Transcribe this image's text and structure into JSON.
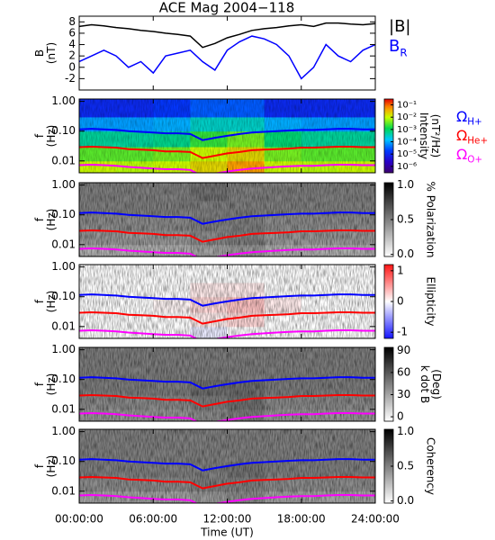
{
  "chart_data": [
    {
      "type": "line",
      "title": "ACE Mag 2004−118",
      "ylabel": [
        "B",
        "(nT)"
      ],
      "x": [
        0,
        1,
        2,
        3,
        4,
        5,
        6,
        7,
        8,
        9,
        10,
        11,
        12,
        13,
        14,
        15,
        16,
        17,
        18,
        19,
        20,
        21,
        22,
        23,
        24
      ],
      "ylim": [
        -4,
        9
      ],
      "yticks": [
        -2,
        0,
        2,
        4,
        6,
        8
      ],
      "series": [
        {
          "name": "|B|",
          "color": "#000000",
          "subscript": false,
          "values": [
            7.2,
            7.5,
            7.3,
            7.0,
            6.8,
            6.5,
            6.3,
            6.0,
            5.8,
            5.5,
            3.5,
            4.2,
            5.2,
            5.8,
            6.5,
            6.8,
            7.0,
            7.3,
            7.5,
            7.2,
            7.8,
            7.8,
            7.6,
            7.5,
            7.7
          ]
        },
        {
          "name": "BR",
          "color": "#0000ff",
          "subscript": true,
          "values": [
            1,
            2,
            3,
            2,
            0,
            1,
            -1,
            2,
            2.5,
            3,
            1,
            -0.5,
            3,
            4.5,
            5.5,
            5,
            4,
            2,
            -2,
            0,
            4,
            2,
            1,
            3,
            4
          ]
        }
      ]
    },
    {
      "type": "heatmap",
      "ylabel": [
        "f",
        "(Hz)"
      ],
      "ylog": true,
      "ylim": [
        0.004,
        1.2
      ],
      "yticks": [
        0.01,
        {
          "value": 0.1,
          "label": "0.10"
        },
        {
          "value": 1,
          "label": "1.00"
        }
      ],
      "time_bins": [
        0,
        3,
        6,
        9,
        12,
        15,
        18,
        21,
        24
      ],
      "freq_bins": [
        0.004,
        0.01,
        0.03,
        0.1,
        0.3,
        1.2
      ],
      "z": [
        [
          0.01,
          0.008,
          0.01,
          0.02,
          0.05,
          0.01,
          0.008,
          0.01
        ],
        [
          0.003,
          0.003,
          0.004,
          0.01,
          0.02,
          0.004,
          0.003,
          0.003
        ],
        [
          0.0005,
          0.0005,
          0.0006,
          0.002,
          0.004,
          0.0008,
          0.0005,
          0.0005
        ],
        [
          8e-05,
          8e-05,
          0.0001,
          0.0003,
          0.0003,
          0.0001,
          8e-05,
          8e-05
        ],
        [
          1e-05,
          1e-05,
          1.5e-05,
          3e-05,
          3e-05,
          1e-05,
          1e-05,
          1e-05
        ]
      ],
      "colormap": "rainbow",
      "zlog": true,
      "zlim": [
        3e-07,
        0.3
      ],
      "colorbar_label": [
        "Intensity",
        "(nT²/Hz)"
      ],
      "colorbar_ticks": [
        {
          "value": 0.1,
          "label": "10⁻¹"
        },
        {
          "value": 0.01,
          "label": "10⁻²"
        },
        {
          "value": 0.001,
          "label": "10⁻³"
        },
        {
          "value": 0.0001,
          "label": "10⁻⁴"
        },
        {
          "value": 1e-05,
          "label": "10⁻⁵"
        },
        {
          "value": 1e-06,
          "label": "10⁻⁶"
        }
      ],
      "series": [
        {
          "name": "ΩH+",
          "color": "#0000ff",
          "subscript": true,
          "values": [
            0.115,
            0.12,
            0.115,
            0.11,
            0.1,
            0.095,
            0.09,
            0.085,
            0.085,
            0.08,
            0.05,
            0.06,
            0.07,
            0.08,
            0.09,
            0.095,
            0.1,
            0.105,
            0.11,
            0.11,
            0.115,
            0.12,
            0.12,
            0.115,
            0.115
          ]
        },
        {
          "name": "ΩHe+",
          "color": "#ff0000",
          "subscript": true,
          "values": [
            0.029,
            0.03,
            0.029,
            0.028,
            0.025,
            0.024,
            0.023,
            0.021,
            0.021,
            0.02,
            0.0125,
            0.015,
            0.018,
            0.02,
            0.023,
            0.024,
            0.025,
            0.026,
            0.028,
            0.028,
            0.029,
            0.03,
            0.03,
            0.029,
            0.029
          ]
        },
        {
          "name": "ΩO+",
          "color": "#ff00ff",
          "subscript": true,
          "values": [
            0.0072,
            0.0075,
            0.0072,
            0.0069,
            0.0063,
            0.0059,
            0.0056,
            0.0053,
            0.0053,
            0.005,
            0.0031,
            0.0038,
            0.0044,
            0.005,
            0.0056,
            0.0059,
            0.0063,
            0.0066,
            0.0069,
            0.0069,
            0.0072,
            0.0075,
            0.0075,
            0.0072,
            0.0072
          ]
        }
      ]
    },
    {
      "type": "heatmap",
      "ylabel": [
        "f",
        "(Hz)"
      ],
      "ylog": true,
      "ylim": [
        0.004,
        1.2
      ],
      "yticks": [
        0.01,
        {
          "value": 0.1,
          "label": "0.10"
        },
        {
          "value": 1,
          "label": "1.00"
        }
      ],
      "time_bins": [
        0,
        3,
        6,
        9,
        12,
        15,
        18,
        21,
        24
      ],
      "freq_bins": [
        0.004,
        0.01,
        0.03,
        0.1,
        0.3,
        1.2
      ],
      "z": [
        [
          0.3,
          0.3,
          0.3,
          0.35,
          0.4,
          0.3,
          0.3,
          0.3
        ],
        [
          0.4,
          0.4,
          0.4,
          0.45,
          0.5,
          0.4,
          0.4,
          0.4
        ],
        [
          0.45,
          0.45,
          0.45,
          0.5,
          0.5,
          0.45,
          0.45,
          0.45
        ],
        [
          0.5,
          0.5,
          0.5,
          0.5,
          0.5,
          0.5,
          0.5,
          0.5
        ],
        [
          0.5,
          0.5,
          0.5,
          0.55,
          0.5,
          0.5,
          0.5,
          0.5
        ]
      ],
      "colormap": "gray",
      "zlog": false,
      "zlim": [
        -0.03,
        1.03
      ],
      "colorbar_label": [
        "% Polarization"
      ],
      "colorbar_ticks": [
        {
          "value": 1,
          "label": "1.0"
        },
        {
          "value": 0.5,
          "label": "0.5"
        },
        {
          "value": 0,
          "label": "0.0"
        }
      ]
    },
    {
      "type": "heatmap",
      "ylabel": [
        "f",
        "(Hz)"
      ],
      "ylog": true,
      "ylim": [
        0.004,
        1.2
      ],
      "yticks": [
        0.01,
        {
          "value": 0.1,
          "label": "0.10"
        },
        {
          "value": 1,
          "label": "1.00"
        }
      ],
      "time_bins": [
        0,
        3,
        6,
        9,
        12,
        15,
        18,
        21,
        24
      ],
      "freq_bins": [
        0.004,
        0.01,
        0.03,
        0.1,
        0.3,
        1.2
      ],
      "z": [
        [
          0,
          0,
          0,
          -0.1,
          0,
          0,
          0,
          0
        ],
        [
          0,
          0,
          0,
          0.1,
          0.2,
          0,
          0,
          0
        ],
        [
          0,
          0,
          0.05,
          0.2,
          0.3,
          0.1,
          0,
          0
        ],
        [
          0,
          0,
          0,
          0.1,
          0.1,
          0,
          0,
          0
        ],
        [
          0,
          0,
          0,
          0,
          0,
          0,
          0,
          0
        ]
      ],
      "colormap": "bwr",
      "zlog": false,
      "zlim": [
        -1.2,
        1.2
      ],
      "colorbar_label": [
        "Ellipticity"
      ],
      "colorbar_ticks": [
        1,
        0,
        -1
      ]
    },
    {
      "type": "heatmap",
      "ylabel": [
        "f",
        "(Hz)"
      ],
      "ylog": true,
      "ylim": [
        0.004,
        1.2
      ],
      "yticks": [
        0.01,
        {
          "value": 0.1,
          "label": "0.10"
        },
        {
          "value": 1,
          "label": "1.00"
        }
      ],
      "time_bins": [
        0,
        3,
        6,
        9,
        12,
        15,
        18,
        21,
        24
      ],
      "freq_bins": [
        0.004,
        0.01,
        0.03,
        0.1,
        0.3,
        1.2
      ],
      "z": [
        [
          35,
          35,
          35,
          40,
          45,
          35,
          35,
          35
        ],
        [
          40,
          40,
          40,
          45,
          50,
          40,
          40,
          40
        ],
        [
          45,
          45,
          45,
          50,
          50,
          45,
          45,
          45
        ],
        [
          45,
          45,
          45,
          45,
          45,
          45,
          45,
          45
        ],
        [
          45,
          45,
          45,
          45,
          45,
          45,
          45,
          45
        ]
      ],
      "colormap": "gray",
      "zlog": false,
      "zlim": [
        -6,
        94
      ],
      "colorbar_label": [
        "k dot B",
        "(Deg)"
      ],
      "colorbar_ticks": [
        90,
        60,
        30,
        0
      ]
    },
    {
      "type": "heatmap",
      "ylabel": [
        "f",
        "(Hz)"
      ],
      "ylog": true,
      "ylim": [
        0.004,
        1.2
      ],
      "yticks": [
        0.01,
        {
          "value": 0.1,
          "label": "0.10"
        },
        {
          "value": 1,
          "label": "1.00"
        }
      ],
      "time_bins": [
        0,
        3,
        6,
        9,
        12,
        15,
        18,
        21,
        24
      ],
      "freq_bins": [
        0.004,
        0.01,
        0.03,
        0.1,
        0.3,
        1.2
      ],
      "z": [
        [
          0.35,
          0.35,
          0.35,
          0.4,
          0.45,
          0.35,
          0.35,
          0.35
        ],
        [
          0.45,
          0.45,
          0.45,
          0.5,
          0.5,
          0.45,
          0.45,
          0.45
        ],
        [
          0.5,
          0.5,
          0.5,
          0.5,
          0.55,
          0.5,
          0.5,
          0.5
        ],
        [
          0.5,
          0.5,
          0.5,
          0.5,
          0.5,
          0.5,
          0.5,
          0.5
        ],
        [
          0.5,
          0.5,
          0.5,
          0.5,
          0.5,
          0.5,
          0.5,
          0.5
        ]
      ],
      "colormap": "gray",
      "zlog": false,
      "zlim": [
        -0.03,
        1.03
      ],
      "colorbar_label": [
        "Coherency"
      ],
      "colorbar_ticks": [
        {
          "value": 1,
          "label": "1.0"
        },
        {
          "value": 0.5,
          "label": "0.5"
        },
        {
          "value": 0,
          "label": "0.0"
        }
      ],
      "xlim": [
        0,
        24
      ],
      "xlabel": "Time (UT)",
      "xticks": [
        {
          "value": 0,
          "label": "00:00:00"
        },
        {
          "value": 6,
          "label": "06:00:00"
        },
        {
          "value": 12,
          "label": "12:00:00"
        },
        {
          "value": 18,
          "label": "18:00:00"
        },
        {
          "value": 24,
          "label": "24:00:00"
        }
      ]
    }
  ]
}
